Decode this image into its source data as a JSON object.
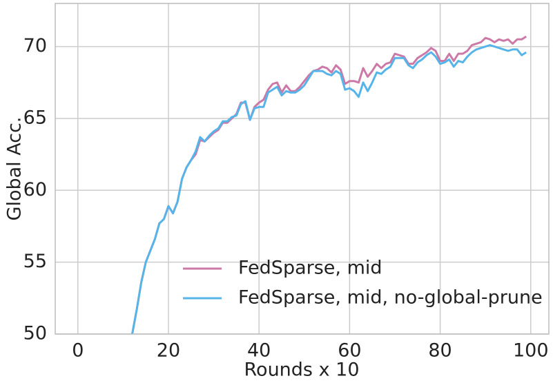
{
  "chart_data": {
    "type": "line",
    "xlabel": "Rounds x 10",
    "ylabel": "Global Acc.",
    "x": [
      12,
      13,
      14,
      15,
      16,
      17,
      18,
      19,
      20,
      21,
      22,
      23,
      24,
      25,
      26,
      27,
      28,
      29,
      30,
      31,
      32,
      33,
      34,
      35,
      36,
      37,
      38,
      39,
      40,
      41,
      42,
      43,
      44,
      45,
      46,
      47,
      48,
      49,
      50,
      51,
      52,
      53,
      54,
      55,
      56,
      57,
      58,
      59,
      60,
      61,
      62,
      63,
      64,
      65,
      66,
      67,
      68,
      69,
      70,
      71,
      72,
      73,
      74,
      75,
      76,
      77,
      78,
      79,
      80,
      81,
      82,
      83,
      84,
      85,
      86,
      87,
      88,
      89,
      90,
      91,
      92,
      93,
      94,
      95,
      96,
      97,
      98,
      99
    ],
    "series": [
      {
        "name": "FedSparse, mid",
        "color": "#cc79a7",
        "values": [
          50.0,
          51.7,
          53.6,
          55.0,
          55.8,
          56.6,
          57.7,
          58.0,
          58.9,
          58.4,
          59.2,
          60.8,
          61.6,
          62.1,
          62.5,
          63.5,
          63.4,
          63.7,
          64.0,
          64.2,
          64.7,
          64.7,
          65.0,
          65.3,
          66.1,
          66.1,
          64.9,
          65.8,
          66.1,
          66.3,
          67.0,
          67.4,
          67.5,
          66.8,
          67.3,
          66.9,
          66.9,
          67.2,
          67.6,
          68.0,
          68.3,
          68.4,
          68.6,
          68.5,
          68.2,
          68.7,
          68.4,
          67.4,
          67.6,
          67.6,
          67.5,
          68.5,
          67.9,
          68.3,
          68.8,
          68.5,
          68.8,
          68.9,
          69.5,
          69.4,
          69.3,
          68.8,
          68.8,
          69.2,
          69.4,
          69.6,
          69.9,
          69.7,
          69.0,
          69.0,
          69.5,
          69.0,
          69.5,
          69.5,
          69.7,
          70.1,
          70.2,
          70.3,
          70.6,
          70.5,
          70.3,
          70.5,
          70.4,
          70.5,
          70.2,
          70.5,
          70.5,
          70.7
        ]
      },
      {
        "name": "FedSparse, mid, no-global-prune",
        "color": "#56b4e9",
        "values": [
          50.0,
          51.7,
          53.6,
          55.0,
          55.8,
          56.6,
          57.7,
          58.0,
          58.9,
          58.4,
          59.2,
          60.8,
          61.6,
          62.1,
          62.7,
          63.7,
          63.4,
          63.8,
          64.1,
          64.3,
          64.8,
          64.8,
          65.1,
          65.2,
          66.0,
          66.2,
          64.9,
          65.7,
          65.8,
          65.8,
          66.8,
          67.0,
          67.2,
          66.6,
          66.9,
          66.8,
          66.8,
          67.0,
          67.3,
          67.8,
          68.3,
          68.3,
          68.3,
          68.1,
          68.0,
          68.3,
          68.1,
          67.0,
          67.1,
          66.9,
          66.5,
          67.5,
          66.9,
          67.5,
          68.2,
          68.1,
          68.4,
          68.6,
          69.2,
          69.2,
          69.2,
          68.7,
          68.5,
          68.9,
          69.1,
          69.4,
          69.6,
          69.3,
          68.8,
          68.9,
          69.1,
          68.6,
          69.0,
          68.9,
          69.3,
          69.6,
          69.8,
          69.9,
          70.0,
          70.1,
          70.0,
          69.9,
          69.8,
          69.7,
          69.8,
          69.8,
          69.4,
          69.6
        ]
      }
    ],
    "xlim": [
      -5,
      104
    ],
    "xticks": [
      0,
      20,
      40,
      60,
      80,
      100
    ],
    "ylim": [
      50,
      73
    ],
    "yticks": [
      50,
      55,
      60,
      65,
      70
    ],
    "grid": true,
    "legend": "lower right"
  }
}
